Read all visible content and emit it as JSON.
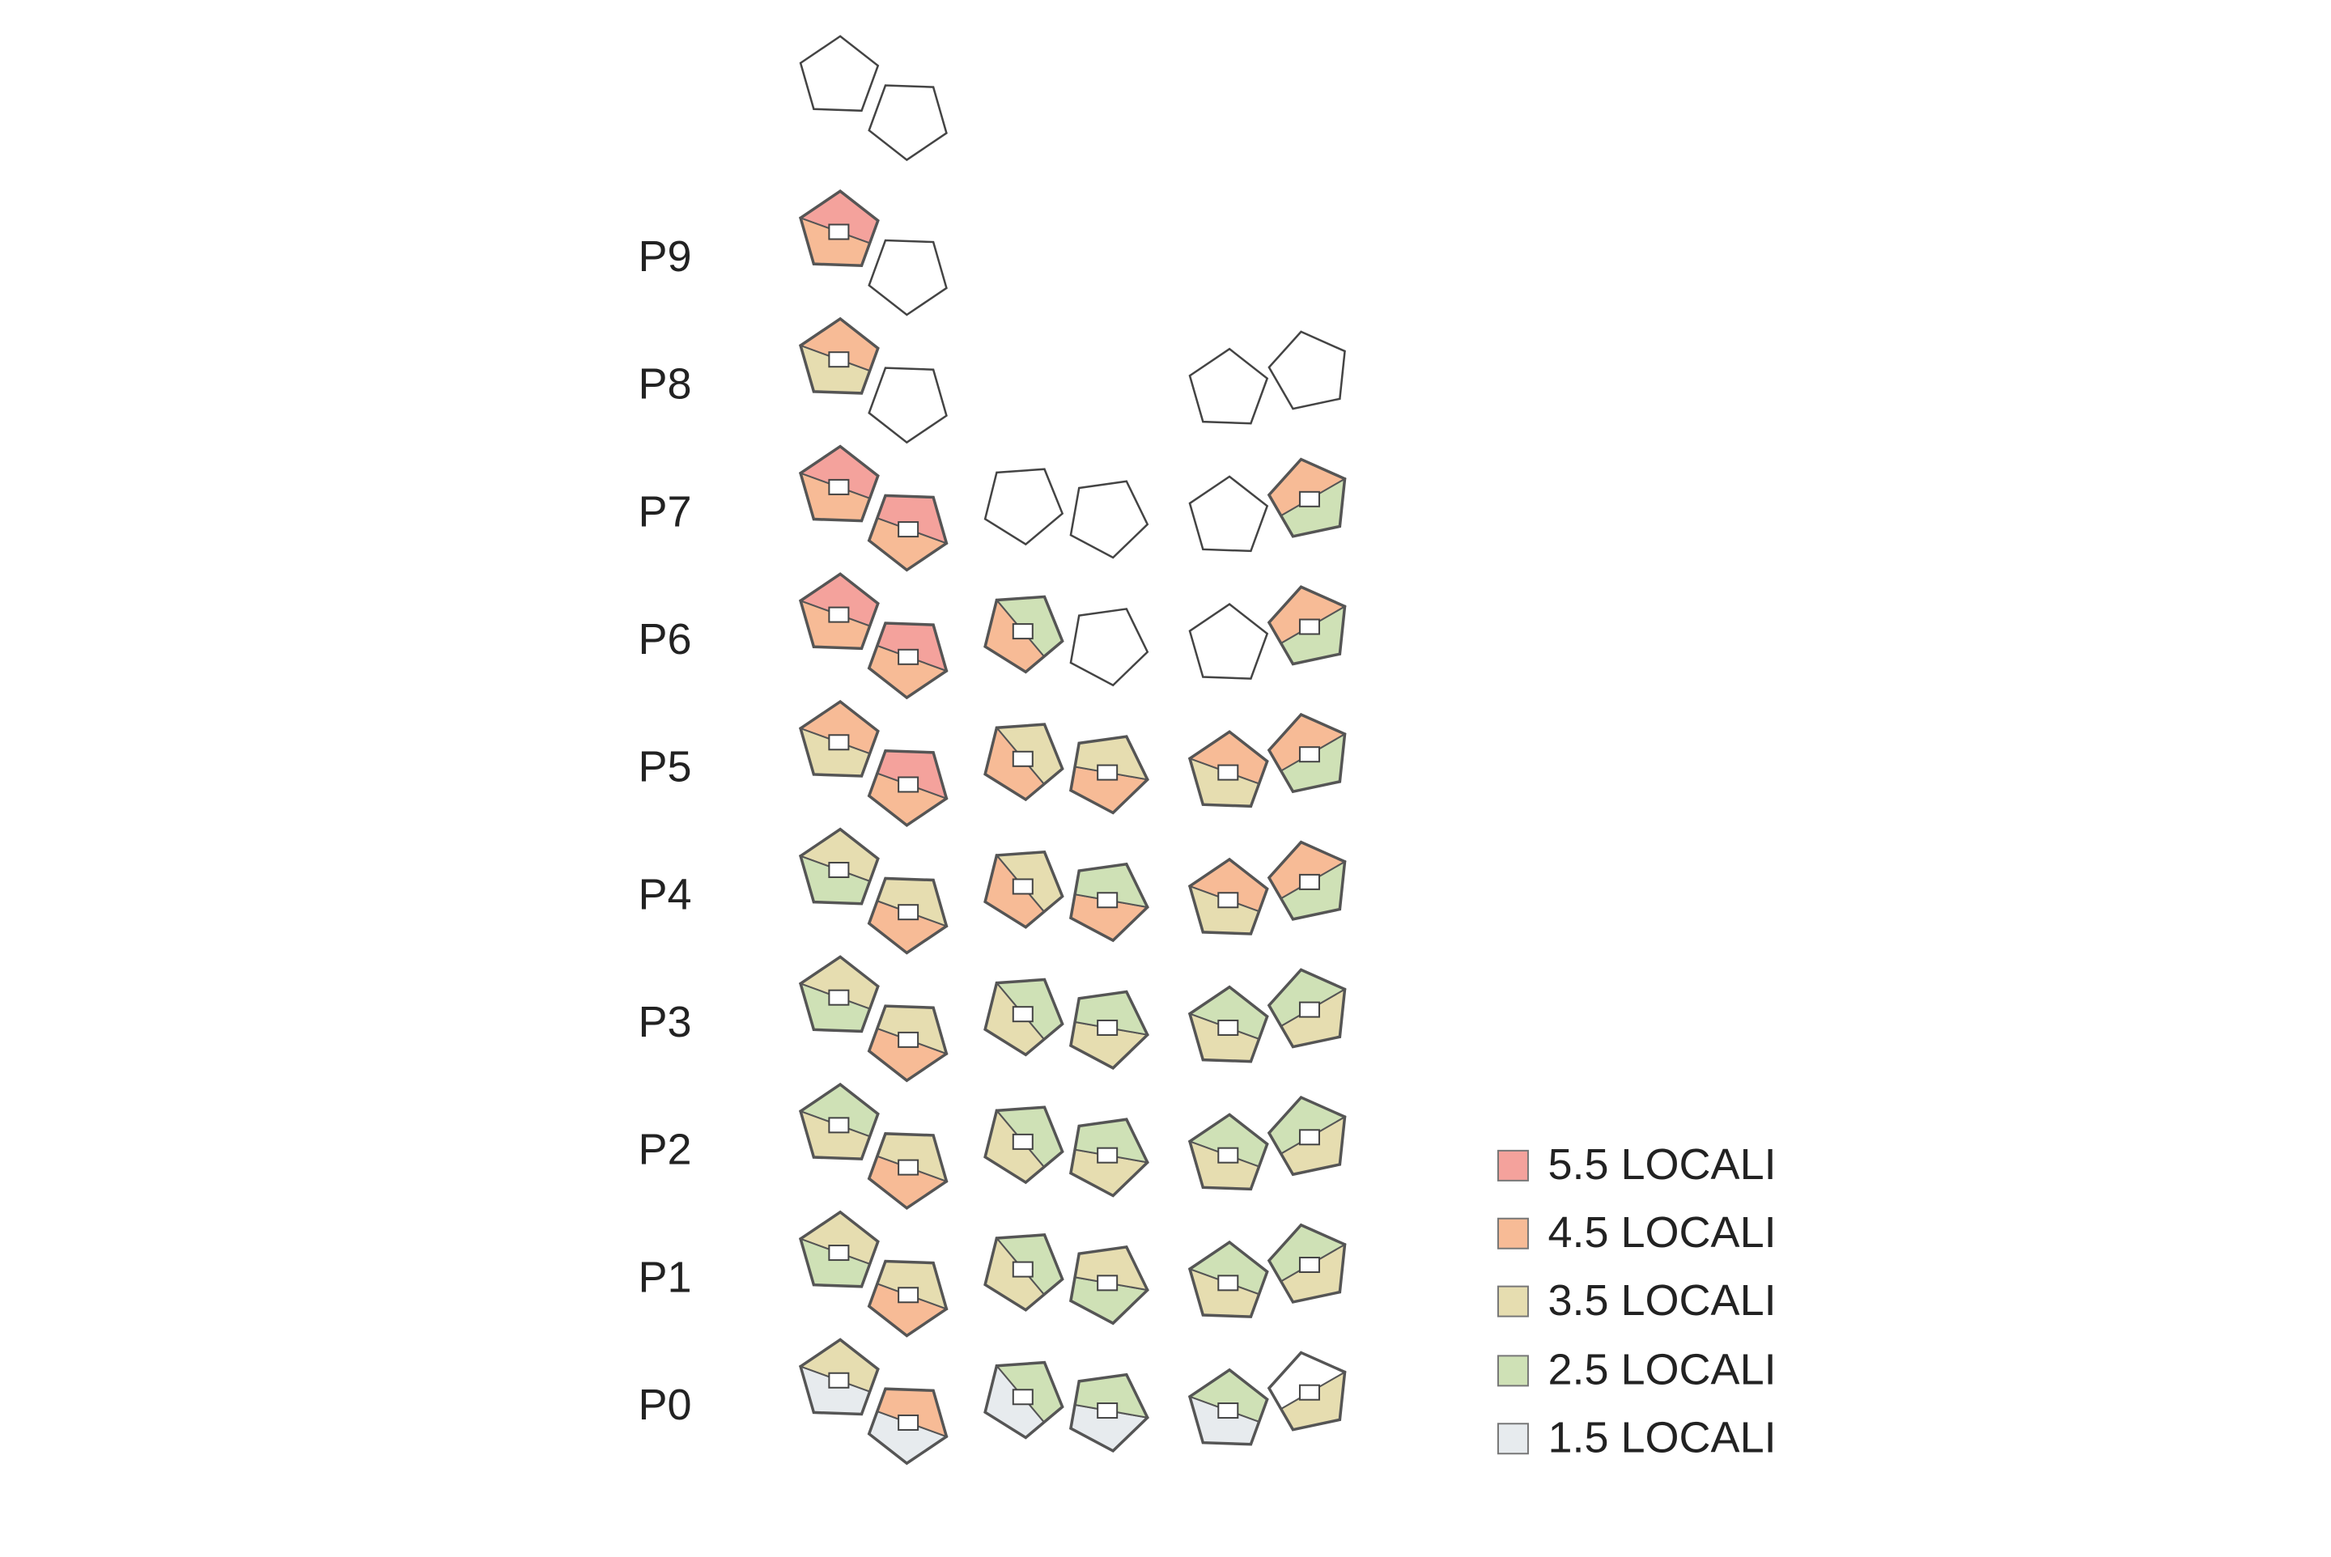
{
  "floors": [
    "P9",
    "P8",
    "P7",
    "P6",
    "P5",
    "P4",
    "P3",
    "P2",
    "P1",
    "P0"
  ],
  "legend": [
    {
      "label": "5.5 LOCALI",
      "color": "#f4a29c"
    },
    {
      "label": "4.5 LOCALI",
      "color": "#f7bb96"
    },
    {
      "label": "3.5 LOCALI",
      "color": "#e6ddb0"
    },
    {
      "label": "2.5 LOCALI",
      "color": "#cfe1b6"
    },
    {
      "label": "1.5 LOCALI",
      "color": "#e7ebee"
    }
  ]
}
